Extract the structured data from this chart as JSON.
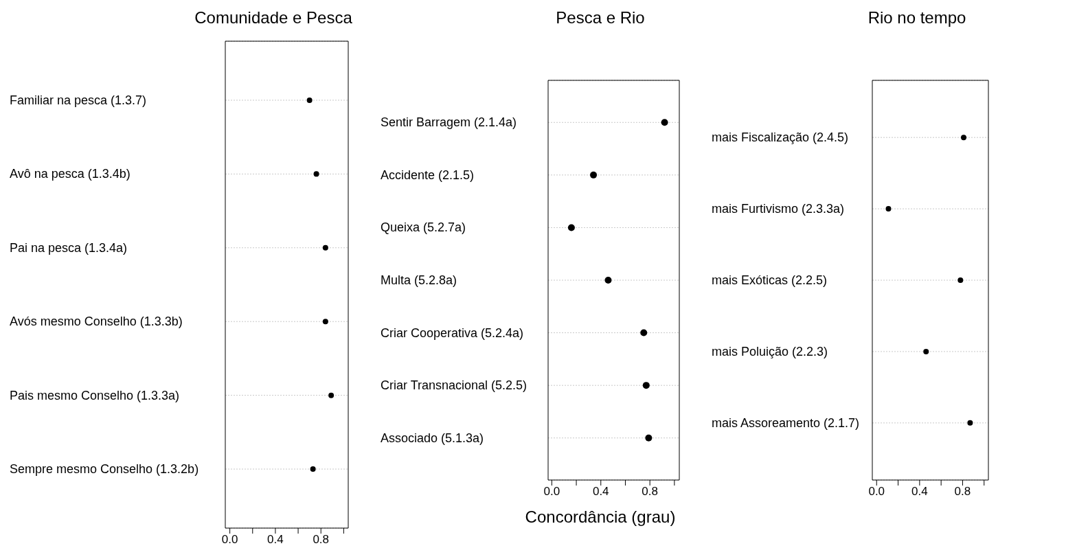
{
  "chart_data": [
    {
      "type": "scatter",
      "orientation": "horizontal",
      "title": "Comunidade e Pesca",
      "categories": [
        "Familiar na pesca (1.3.7)",
        "Avô na pesca (1.3.4b)",
        "Pai na pesca (1.3.4a)",
        "Avós mesmo Conselho (1.3.3b)",
        "Pais mesmo Conselho (1.3.3a)",
        "Sempre mesmo Conselho (1.3.2b)"
      ],
      "series": [
        {
          "color": "#000000",
          "values": [
            0.7,
            0.76,
            0.84,
            0.84,
            0.89,
            0.73
          ]
        }
      ],
      "xlim": [
        -0.04,
        1.04
      ],
      "xticks": [
        {
          "value": 0,
          "label": "0.0"
        },
        {
          "value": 0.2,
          "label": null
        },
        {
          "value": 0.4,
          "label": "0.4"
        },
        {
          "value": 0.6,
          "label": null
        },
        {
          "value": 0.8,
          "label": "0.8"
        },
        {
          "value": 1.0,
          "label": null
        }
      ],
      "grid": "y",
      "marker": "circle",
      "legend": false
    },
    {
      "type": "scatter",
      "orientation": "horizontal",
      "title": "Pesca e Rio",
      "xlabel": "Concordância (grau)",
      "categories": [
        "Sentir Barragem (2.1.4a)",
        "Accidente (2.1.5)",
        "Queixa (5.2.7a)",
        "Multa (5.2.8a)",
        "Criar Cooperativa (5.2.4a)",
        "Criar Transnacional (5.2.5)",
        "Associado (5.1.3a)"
      ],
      "series": [
        {
          "color": "#000000",
          "values": [
            0.92,
            0.34,
            0.16,
            0.46,
            0.75,
            0.77,
            0.79
          ]
        }
      ],
      "xlim": [
        -0.03,
        1.04
      ],
      "xticks": [
        {
          "value": 0,
          "label": "0.0"
        },
        {
          "value": 0.2,
          "label": null
        },
        {
          "value": 0.4,
          "label": "0.4"
        },
        {
          "value": 0.6,
          "label": null
        },
        {
          "value": 0.8,
          "label": "0.8"
        },
        {
          "value": 1.0,
          "label": null
        }
      ],
      "grid": "y",
      "marker": "circle",
      "legend": false
    },
    {
      "type": "scatter",
      "orientation": "horizontal",
      "title": "Rio no tempo",
      "categories": [
        "mais Fiscalização (2.4.5)",
        "mais Furtivismo (2.3.3a)",
        "mais Exóticas (2.2.5)",
        "mais Poluição (2.2.3)",
        "mais Assoreamento (2.1.7)"
      ],
      "series": [
        {
          "color": "#000000",
          "values": [
            0.81,
            0.11,
            0.78,
            0.46,
            0.87
          ]
        }
      ],
      "xlim": [
        -0.04,
        1.04
      ],
      "xticks": [
        {
          "value": 0,
          "label": "0.0"
        },
        {
          "value": 0.2,
          "label": null
        },
        {
          "value": 0.4,
          "label": "0.4"
        },
        {
          "value": 0.6,
          "label": null
        },
        {
          "value": 0.8,
          "label": "0.8"
        },
        {
          "value": 1.0,
          "label": null
        }
      ],
      "grid": "y",
      "marker": "circle",
      "legend": false
    }
  ]
}
